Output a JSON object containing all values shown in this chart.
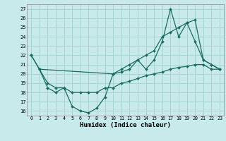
{
  "xlabel": "Humidex (Indice chaleur)",
  "background_color": "#c8eaea",
  "grid_color": "#a8d4d0",
  "line_color": "#1a6b60",
  "xlim": [
    -0.5,
    23.5
  ],
  "ylim": [
    15.5,
    27.5
  ],
  "xticks": [
    0,
    1,
    2,
    3,
    4,
    5,
    6,
    7,
    8,
    9,
    10,
    11,
    12,
    13,
    14,
    15,
    16,
    17,
    18,
    19,
    20,
    21,
    22,
    23
  ],
  "yticks": [
    16,
    17,
    18,
    19,
    20,
    21,
    22,
    23,
    24,
    25,
    26,
    27
  ],
  "series": [
    {
      "x": [
        0,
        1,
        2,
        3,
        4,
        5,
        6,
        7,
        8,
        9,
        10,
        11,
        12,
        13,
        14,
        15,
        16,
        17,
        18,
        19,
        20,
        21,
        22,
        23
      ],
      "y": [
        22,
        20.5,
        18.5,
        18.0,
        18.5,
        16.5,
        16.0,
        15.8,
        16.3,
        17.5,
        20.0,
        20.2,
        20.5,
        21.5,
        20.5,
        21.5,
        23.5,
        27.0,
        24.0,
        25.5,
        23.5,
        21.5,
        21.0,
        20.5
      ]
    },
    {
      "x": [
        0,
        1,
        10,
        11,
        12,
        13,
        14,
        15,
        16,
        17,
        18,
        19,
        20,
        21,
        22,
        23
      ],
      "y": [
        22.0,
        20.5,
        20.0,
        20.5,
        21.0,
        21.5,
        22.0,
        22.5,
        24.0,
        24.5,
        25.0,
        25.5,
        25.8,
        21.5,
        21.0,
        20.5
      ]
    },
    {
      "x": [
        1,
        2,
        3,
        4,
        5,
        6,
        7,
        8,
        9,
        10,
        11,
        12,
        13,
        14,
        15,
        16,
        17,
        18,
        19,
        20,
        21,
        22,
        23
      ],
      "y": [
        20.5,
        19.0,
        18.5,
        18.5,
        18.0,
        18.0,
        18.0,
        18.0,
        18.5,
        18.5,
        19.0,
        19.2,
        19.5,
        19.8,
        20.0,
        20.2,
        20.5,
        20.7,
        20.8,
        21.0,
        21.0,
        20.5,
        20.5
      ]
    }
  ]
}
